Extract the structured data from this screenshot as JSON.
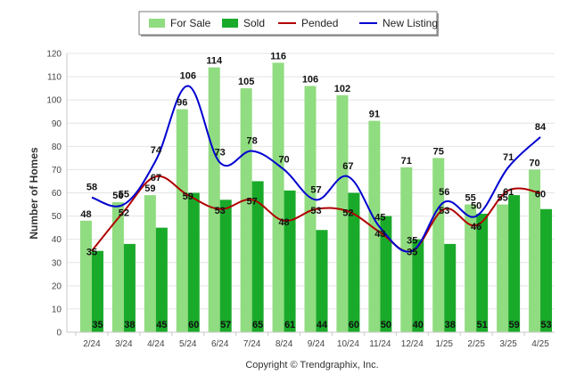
{
  "chart_data": {
    "type": "bar",
    "ylabel": "Number of Homes",
    "xlabel": "",
    "ylim": [
      0,
      120
    ],
    "yticks": [
      0,
      10,
      20,
      30,
      40,
      50,
      60,
      70,
      80,
      90,
      100,
      110,
      120
    ],
    "grid": true,
    "legend_position": "top-center",
    "categories": [
      "2/24",
      "3/24",
      "4/24",
      "5/24",
      "6/24",
      "7/24",
      "8/24",
      "9/24",
      "10/24",
      "11/24",
      "12/24",
      "1/25",
      "2/25",
      "3/25",
      "4/25"
    ],
    "series": [
      {
        "name": "For Sale",
        "kind": "bar",
        "color": "#90dc80",
        "values": [
          48,
          56,
          59,
          96,
          114,
          105,
          116,
          106,
          102,
          91,
          71,
          75,
          55,
          55,
          70
        ]
      },
      {
        "name": "Sold",
        "kind": "bar",
        "color": "#1aaa2a",
        "values": [
          35,
          38,
          45,
          60,
          57,
          65,
          61,
          44,
          60,
          50,
          40,
          38,
          51,
          59,
          53
        ]
      },
      {
        "name": "Pended",
        "kind": "line",
        "color": "#b00000",
        "values": [
          35,
          52,
          67,
          59,
          53,
          57,
          48,
          53,
          52,
          43,
          35,
          53,
          46,
          61,
          60
        ]
      },
      {
        "name": "New Listing",
        "kind": "line",
        "color": "#0000d0",
        "values": [
          58,
          55,
          74,
          106,
          73,
          78,
          70,
          57,
          67,
          45,
          35,
          56,
          50,
          71,
          84
        ]
      }
    ]
  },
  "copyright": "Copyright © Trendgraphix, Inc."
}
